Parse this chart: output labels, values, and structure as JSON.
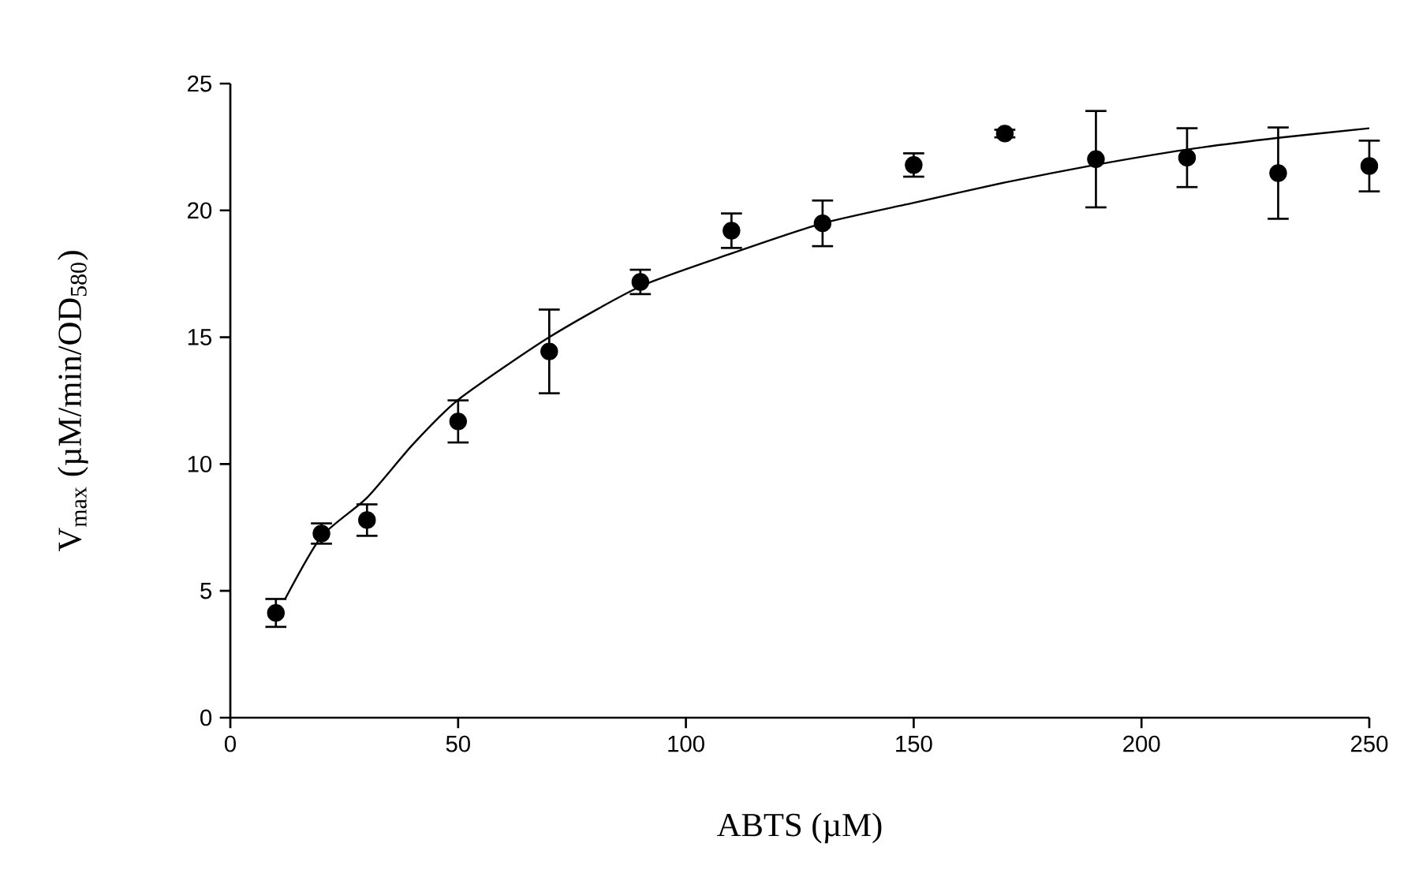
{
  "chart_data": {
    "type": "scatter",
    "xlabel": "ABTS (µM)",
    "ylabel": "V$_{max}$ (µM/min/OD$_{580}$)",
    "xlim": [
      0,
      250
    ],
    "ylim": [
      0,
      25
    ],
    "xticks": [
      0,
      50,
      100,
      150,
      200,
      250
    ],
    "yticks": [
      0,
      5,
      10,
      15,
      20,
      25
    ],
    "marker": "circle",
    "series": [
      {
        "color": "#000000",
        "x": [
          10,
          20,
          30,
          50,
          70,
          90,
          110,
          130,
          150,
          170,
          190,
          210,
          230,
          250
        ],
        "values": [
          4.13,
          7.26,
          7.79,
          11.68,
          14.44,
          17.18,
          19.2,
          19.49,
          21.79,
          23.03,
          22.02,
          22.08,
          21.47,
          21.75
        ],
        "errors": [
          0.55,
          0.4,
          0.62,
          0.83,
          1.65,
          0.48,
          0.68,
          0.9,
          0.46,
          0.15,
          1.9,
          1.16,
          1.8,
          1.0
        ]
      },
      {
        "type": "line",
        "color": "#000000",
        "marker": "none",
        "line_style": "solid",
        "x": [
          12,
          20,
          30,
          40,
          50,
          70,
          90,
          110,
          130,
          150,
          170,
          190,
          210,
          230,
          250
        ],
        "values": [
          4.67,
          7.14,
          8.67,
          10.76,
          12.53,
          15.0,
          17.0,
          18.3,
          19.49,
          20.3,
          21.1,
          21.8,
          22.4,
          22.86,
          23.24
        ]
      }
    ]
  }
}
